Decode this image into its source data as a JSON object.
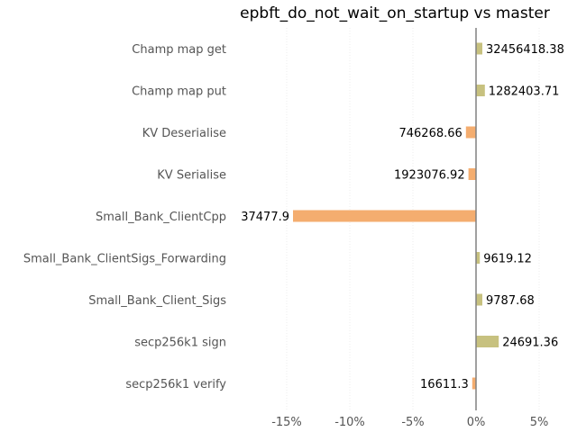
{
  "chart_data": {
    "type": "bar",
    "orientation": "horizontal",
    "title": "epbft_do_not_wait_on_startup vs master",
    "xlabel": "",
    "ylabel": "",
    "categories": [
      "Champ map get",
      "Champ map put",
      "KV Deserialise",
      "KV Serialise",
      "Small_Bank_ClientCpp",
      "Small_Bank_ClientSigs_Forwarding",
      "Small_Bank_Client_Sigs",
      "secp256k1 sign",
      "secp256k1 verify"
    ],
    "values": [
      0.5,
      0.7,
      -0.8,
      -0.6,
      -14.5,
      0.3,
      0.5,
      1.8,
      -0.3
    ],
    "value_unit": "%",
    "data_labels": [
      "32456418.38",
      "1282403.71",
      "746268.66",
      "1923076.92",
      "37477.9",
      "9619.12",
      "9787.68",
      "24691.36",
      "16611.3"
    ],
    "xlim": [
      -19,
      8
    ],
    "xticks": [
      -15,
      -10,
      -5,
      0,
      5
    ],
    "xtick_labels": [
      "-15%",
      "-10%",
      "-5%",
      "0%",
      "5%"
    ],
    "grid": "vertical",
    "colors": {
      "positive": "#c7c17f",
      "negative": "#f4ad6f",
      "zero_line": "#808080"
    }
  }
}
